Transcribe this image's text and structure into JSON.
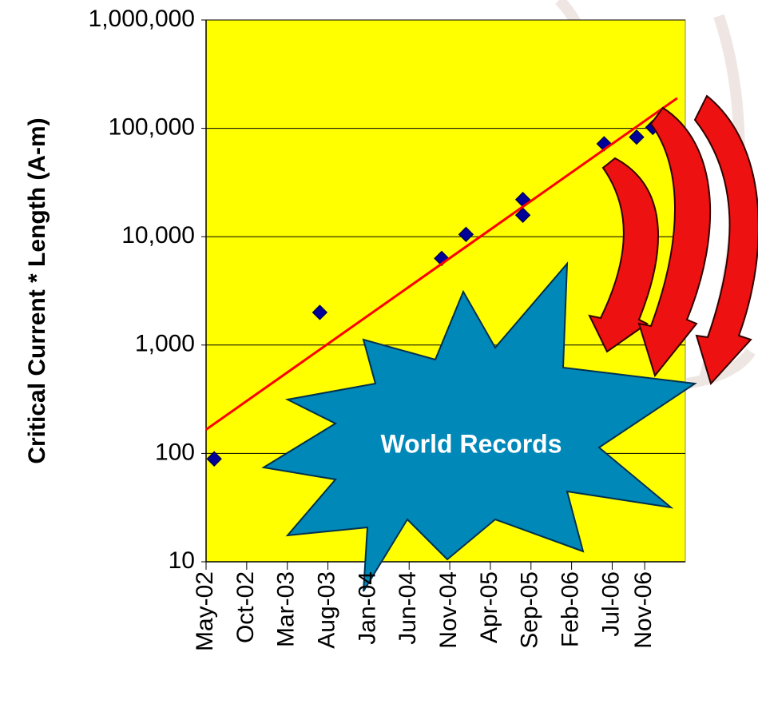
{
  "chart_data": {
    "type": "scatter",
    "y_label": "Critical Current * Length (A-m)",
    "annotation": "World Records",
    "y_log": true,
    "grid": true,
    "background": "#ffff00",
    "xlim": [
      "May-02",
      "Apr-07"
    ],
    "xticks": [
      "May-02",
      "Oct-02",
      "Mar-03",
      "Aug-03",
      "Jan-04",
      "Jun-04",
      "Nov-04",
      "Apr-05",
      "Sep-05",
      "Feb-06",
      "Jul-06",
      "Nov-06"
    ],
    "ylim": [
      10,
      1000000
    ],
    "yticks": [
      10,
      100,
      {
        "value": 1000,
        "label": "1,000"
      },
      {
        "value": 10000,
        "label": "10,000"
      },
      {
        "value": 100000,
        "label": "100,000"
      },
      {
        "value": 1000000,
        "label": "1,000,000"
      }
    ],
    "series": [
      {
        "color": "#000099",
        "marker": "diamond",
        "x": [
          "Jun-02",
          "Jul-03",
          "Oct-04",
          "Jan-05",
          "Aug-05",
          "Aug-05",
          "Jun-06",
          "Oct-06",
          "Dec-06"
        ],
        "values": [
          89,
          2000,
          6300,
          10500,
          22000,
          15800,
          72000,
          83000,
          102000
        ]
      },
      {
        "color": "#ff0000",
        "marker": "line",
        "x": [
          "May-02",
          "Mar-07"
        ],
        "values": [
          166,
          190000
        ]
      }
    ]
  }
}
